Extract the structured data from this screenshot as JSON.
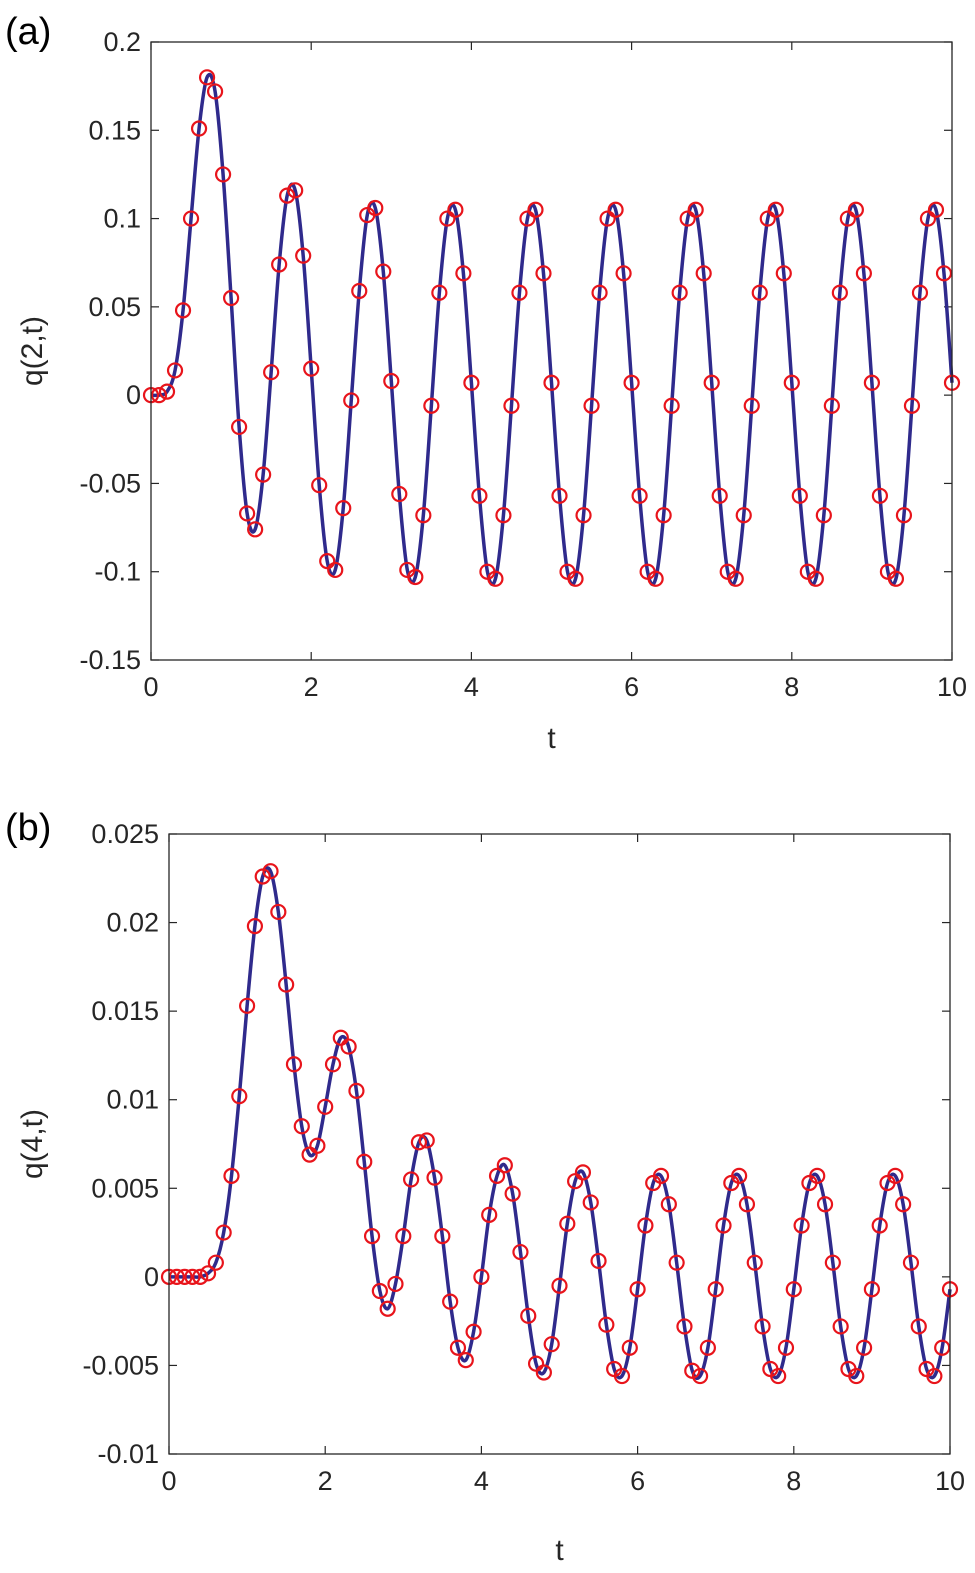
{
  "chart_data": [
    {
      "type": "line",
      "title": "(a)",
      "x_label": "t",
      "y_label": "q(2,t)",
      "line_color": "#2f2a8c",
      "marker_color": "#e8141b",
      "marker": "circle",
      "x": [
        0,
        0.1,
        0.2,
        0.3,
        0.4,
        0.5,
        0.6,
        0.7,
        0.8,
        0.9,
        1,
        1.1,
        1.2,
        1.3,
        1.4,
        1.5,
        1.6,
        1.7,
        1.8,
        1.9,
        2,
        2.1,
        2.2,
        2.3,
        2.4,
        2.5,
        2.6,
        2.7,
        2.8,
        2.9,
        3,
        3.1,
        3.2,
        3.3,
        3.4,
        3.5,
        3.6,
        3.7,
        3.8,
        3.9,
        4,
        4.1,
        4.2,
        4.3,
        4.4,
        4.5,
        4.6,
        4.7,
        4.8,
        4.9,
        5,
        5.1,
        5.2,
        5.3,
        5.4,
        5.5,
        5.6,
        5.7,
        5.8,
        5.9,
        6,
        6.1,
        6.2,
        6.3,
        6.4,
        6.5,
        6.6,
        6.7,
        6.8,
        6.9,
        7,
        7.1,
        7.2,
        7.3,
        7.4,
        7.5,
        7.6,
        7.7,
        7.8,
        7.9,
        8,
        8.1,
        8.2,
        8.3,
        8.4,
        8.5,
        8.6,
        8.7,
        8.8,
        8.9,
        9,
        9.1,
        9.2,
        9.3,
        9.4,
        9.5,
        9.6,
        9.7,
        9.8,
        9.9,
        10
      ],
      "values": [
        0,
        0,
        0.002,
        0.014,
        0.048,
        0.1,
        0.151,
        0.18,
        0.172,
        0.125,
        0.055,
        -0.018,
        -0.067,
        -0.076,
        -0.045,
        0.013,
        0.074,
        0.113,
        0.116,
        0.079,
        0.015,
        -0.051,
        -0.094,
        -0.099,
        -0.064,
        -0.003,
        0.059,
        0.102,
        0.106,
        0.07,
        0.008,
        -0.056,
        -0.099,
        -0.103,
        -0.068,
        -0.006,
        0.058,
        0.1,
        0.105,
        0.069,
        0.007,
        -0.057,
        -0.1,
        -0.104,
        -0.068,
        -0.006,
        0.058,
        0.1,
        0.105,
        0.069,
        0.007,
        -0.057,
        -0.1,
        -0.104,
        -0.068,
        -0.006,
        0.058,
        0.1,
        0.105,
        0.069,
        0.007,
        -0.057,
        -0.1,
        -0.104,
        -0.068,
        -0.006,
        0.058,
        0.1,
        0.105,
        0.069,
        0.007,
        -0.057,
        -0.1,
        -0.104,
        -0.068,
        -0.006,
        0.058,
        0.1,
        0.105,
        0.069,
        0.007,
        -0.057,
        -0.1,
        -0.104,
        -0.068,
        -0.006,
        0.058,
        0.1,
        0.105,
        0.069,
        0.007,
        -0.057,
        -0.1,
        -0.104,
        -0.068,
        -0.006,
        0.058,
        0.1,
        0.105,
        0.069,
        0.007
      ],
      "xlim": [
        0,
        10
      ],
      "xticks": [
        0,
        2,
        4,
        6,
        8,
        10
      ],
      "ylim": [
        -0.15,
        0.2
      ],
      "yticks": [
        -0.15,
        -0.1,
        -0.05,
        0,
        0.05,
        0.1,
        0.15,
        0.2
      ],
      "grid": false
    },
    {
      "type": "line",
      "title": "(b)",
      "x_label": "t",
      "y_label": "q(4,t)",
      "line_color": "#2f2a8c",
      "marker_color": "#e8141b",
      "marker": "circle",
      "x": [
        0,
        0.1,
        0.2,
        0.3,
        0.4,
        0.5,
        0.6,
        0.7,
        0.8,
        0.9,
        1,
        1.1,
        1.2,
        1.3,
        1.4,
        1.5,
        1.6,
        1.7,
        1.8,
        1.9,
        2,
        2.1,
        2.2,
        2.3,
        2.4,
        2.5,
        2.6,
        2.7,
        2.8,
        2.9,
        3,
        3.1,
        3.2,
        3.3,
        3.4,
        3.5,
        3.6,
        3.7,
        3.8,
        3.9,
        4,
        4.1,
        4.2,
        4.3,
        4.4,
        4.5,
        4.6,
        4.7,
        4.8,
        4.9,
        5,
        5.1,
        5.2,
        5.3,
        5.4,
        5.5,
        5.6,
        5.7,
        5.8,
        5.9,
        6,
        6.1,
        6.2,
        6.3,
        6.4,
        6.5,
        6.6,
        6.7,
        6.8,
        6.9,
        7,
        7.1,
        7.2,
        7.3,
        7.4,
        7.5,
        7.6,
        7.7,
        7.8,
        7.9,
        8,
        8.1,
        8.2,
        8.3,
        8.4,
        8.5,
        8.6,
        8.7,
        8.8,
        8.9,
        9,
        9.1,
        9.2,
        9.3,
        9.4,
        9.5,
        9.6,
        9.7,
        9.8,
        9.9,
        10
      ],
      "values": [
        0,
        0,
        0,
        0,
        0,
        0.0002,
        0.0008,
        0.0025,
        0.0057,
        0.0102,
        0.0153,
        0.0198,
        0.0226,
        0.0229,
        0.0206,
        0.0165,
        0.012,
        0.0085,
        0.0069,
        0.0074,
        0.0096,
        0.012,
        0.0135,
        0.013,
        0.0105,
        0.0065,
        0.0023,
        -0.0008,
        -0.0018,
        -0.0004,
        0.0023,
        0.0055,
        0.0076,
        0.0077,
        0.0056,
        0.0023,
        -0.0014,
        -0.004,
        -0.0047,
        -0.0031,
        0,
        0.0035,
        0.0057,
        0.0063,
        0.0047,
        0.0014,
        -0.0022,
        -0.0049,
        -0.0054,
        -0.0038,
        -0.0005,
        0.003,
        0.0054,
        0.0059,
        0.0042,
        0.0009,
        -0.0027,
        -0.0052,
        -0.0056,
        -0.004,
        -0.0007,
        0.0029,
        0.0053,
        0.0057,
        0.0041,
        0.0008,
        -0.0028,
        -0.0053,
        -0.0056,
        -0.004,
        -0.0007,
        0.0029,
        0.0053,
        0.0057,
        0.0041,
        0.0008,
        -0.0028,
        -0.0052,
        -0.0056,
        -0.004,
        -0.0007,
        0.0029,
        0.0053,
        0.0057,
        0.0041,
        0.0008,
        -0.0028,
        -0.0052,
        -0.0056,
        -0.004,
        -0.0007,
        0.0029,
        0.0053,
        0.0057,
        0.0041,
        0.0008,
        -0.0028,
        -0.0052,
        -0.0056,
        -0.004,
        -0.0007
      ],
      "xlim": [
        0,
        10
      ],
      "xticks": [
        0,
        2,
        4,
        6,
        8,
        10
      ],
      "ylim": [
        -0.01,
        0.025
      ],
      "yticks": [
        -0.01,
        -0.005,
        0,
        0.005,
        0.01,
        0.015,
        0.02,
        0.025
      ],
      "grid": false
    }
  ]
}
